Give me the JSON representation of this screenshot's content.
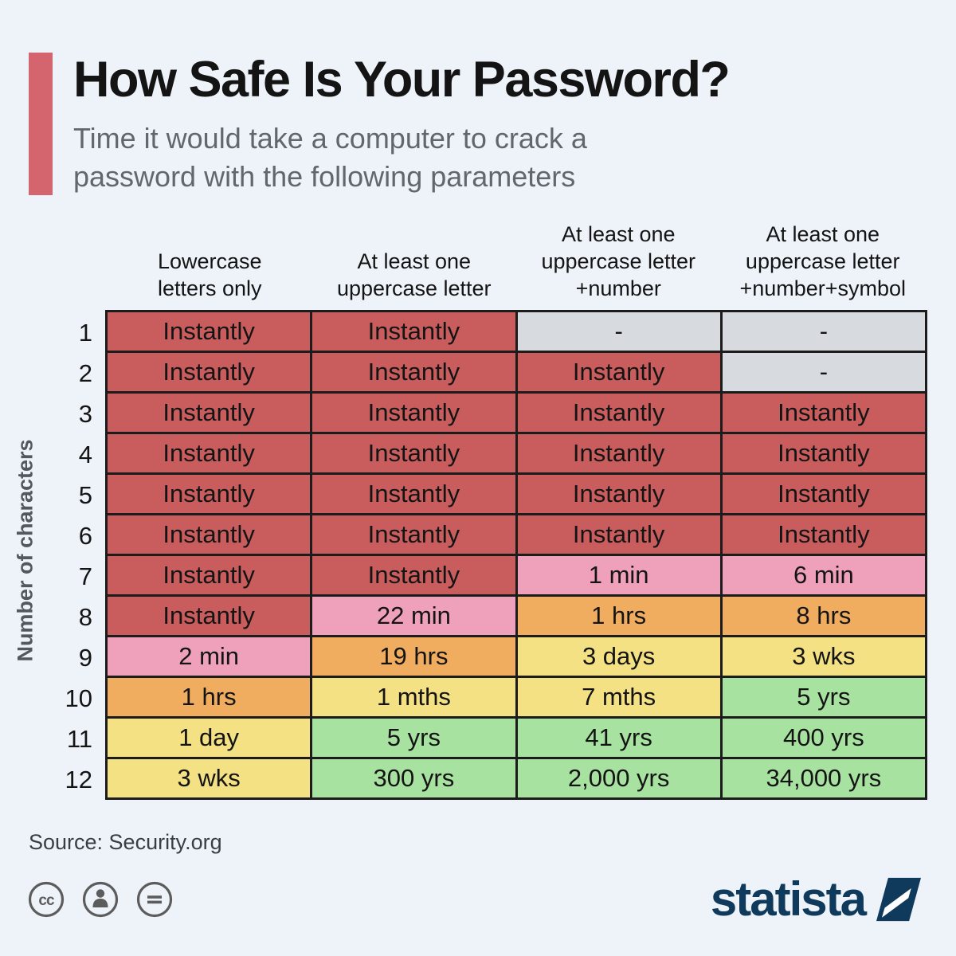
{
  "colors": {
    "background": "#eef3f9",
    "accent_bar": "#d4646e",
    "subtitle_text": "#62676d",
    "grid_line": "#1c1c1c",
    "brand_navy": "#0f3a5c",
    "icon_gray": "#5c5c5c",
    "cell_levels": {
      "red": "#c95d5d",
      "pink": "#efa0bb",
      "orange": "#f0ad60",
      "yellow": "#f3e183",
      "green": "#a8e2a0",
      "gray": "#d7dbe0"
    }
  },
  "header": {
    "title": "How Safe Is Your Password?",
    "subtitle": "Time it would take a computer to crack a\npassword with the following parameters"
  },
  "chart_data": {
    "type": "heatmap",
    "title": "How Safe Is Your Password?",
    "subtitle": "Time it would take a computer to crack a password with the following parameters",
    "ylabel": "Number of characters",
    "columns": [
      "Lowercase\nletters only",
      "At least one\nuppercase letter",
      "At least one\nuppercase letter\n+number",
      "At least one\nuppercase letter\n+number+symbol"
    ],
    "row_labels": [
      "1",
      "2",
      "3",
      "4",
      "5",
      "6",
      "7",
      "8",
      "9",
      "10",
      "11",
      "12"
    ],
    "cells": [
      [
        {
          "text": "Instantly",
          "level": "red"
        },
        {
          "text": "Instantly",
          "level": "red"
        },
        {
          "text": "-",
          "level": "gray"
        },
        {
          "text": "-",
          "level": "gray"
        }
      ],
      [
        {
          "text": "Instantly",
          "level": "red"
        },
        {
          "text": "Instantly",
          "level": "red"
        },
        {
          "text": "Instantly",
          "level": "red"
        },
        {
          "text": "-",
          "level": "gray"
        }
      ],
      [
        {
          "text": "Instantly",
          "level": "red"
        },
        {
          "text": "Instantly",
          "level": "red"
        },
        {
          "text": "Instantly",
          "level": "red"
        },
        {
          "text": "Instantly",
          "level": "red"
        }
      ],
      [
        {
          "text": "Instantly",
          "level": "red"
        },
        {
          "text": "Instantly",
          "level": "red"
        },
        {
          "text": "Instantly",
          "level": "red"
        },
        {
          "text": "Instantly",
          "level": "red"
        }
      ],
      [
        {
          "text": "Instantly",
          "level": "red"
        },
        {
          "text": "Instantly",
          "level": "red"
        },
        {
          "text": "Instantly",
          "level": "red"
        },
        {
          "text": "Instantly",
          "level": "red"
        }
      ],
      [
        {
          "text": "Instantly",
          "level": "red"
        },
        {
          "text": "Instantly",
          "level": "red"
        },
        {
          "text": "Instantly",
          "level": "red"
        },
        {
          "text": "Instantly",
          "level": "red"
        }
      ],
      [
        {
          "text": "Instantly",
          "level": "red"
        },
        {
          "text": "Instantly",
          "level": "red"
        },
        {
          "text": "1 min",
          "level": "pink"
        },
        {
          "text": "6 min",
          "level": "pink"
        }
      ],
      [
        {
          "text": "Instantly",
          "level": "red"
        },
        {
          "text": "22 min",
          "level": "pink"
        },
        {
          "text": "1 hrs",
          "level": "orange"
        },
        {
          "text": "8 hrs",
          "level": "orange"
        }
      ],
      [
        {
          "text": "2 min",
          "level": "pink"
        },
        {
          "text": "19 hrs",
          "level": "orange"
        },
        {
          "text": "3 days",
          "level": "yellow"
        },
        {
          "text": "3 wks",
          "level": "yellow"
        }
      ],
      [
        {
          "text": "1 hrs",
          "level": "orange"
        },
        {
          "text": "1 mths",
          "level": "yellow"
        },
        {
          "text": "7 mths",
          "level": "yellow"
        },
        {
          "text": "5 yrs",
          "level": "green"
        }
      ],
      [
        {
          "text": "1 day",
          "level": "yellow"
        },
        {
          "text": "5 yrs",
          "level": "green"
        },
        {
          "text": "41 yrs",
          "level": "green"
        },
        {
          "text": "400 yrs",
          "level": "green"
        }
      ],
      [
        {
          "text": "3 wks",
          "level": "yellow"
        },
        {
          "text": "300 yrs",
          "level": "green"
        },
        {
          "text": "2,000 yrs",
          "level": "green"
        },
        {
          "text": "34,000 yrs",
          "level": "green"
        }
      ]
    ]
  },
  "footer": {
    "source": "Source: Security.org",
    "brand": "statista",
    "license_icons": [
      "cc",
      "attribution",
      "no-derivatives"
    ]
  }
}
